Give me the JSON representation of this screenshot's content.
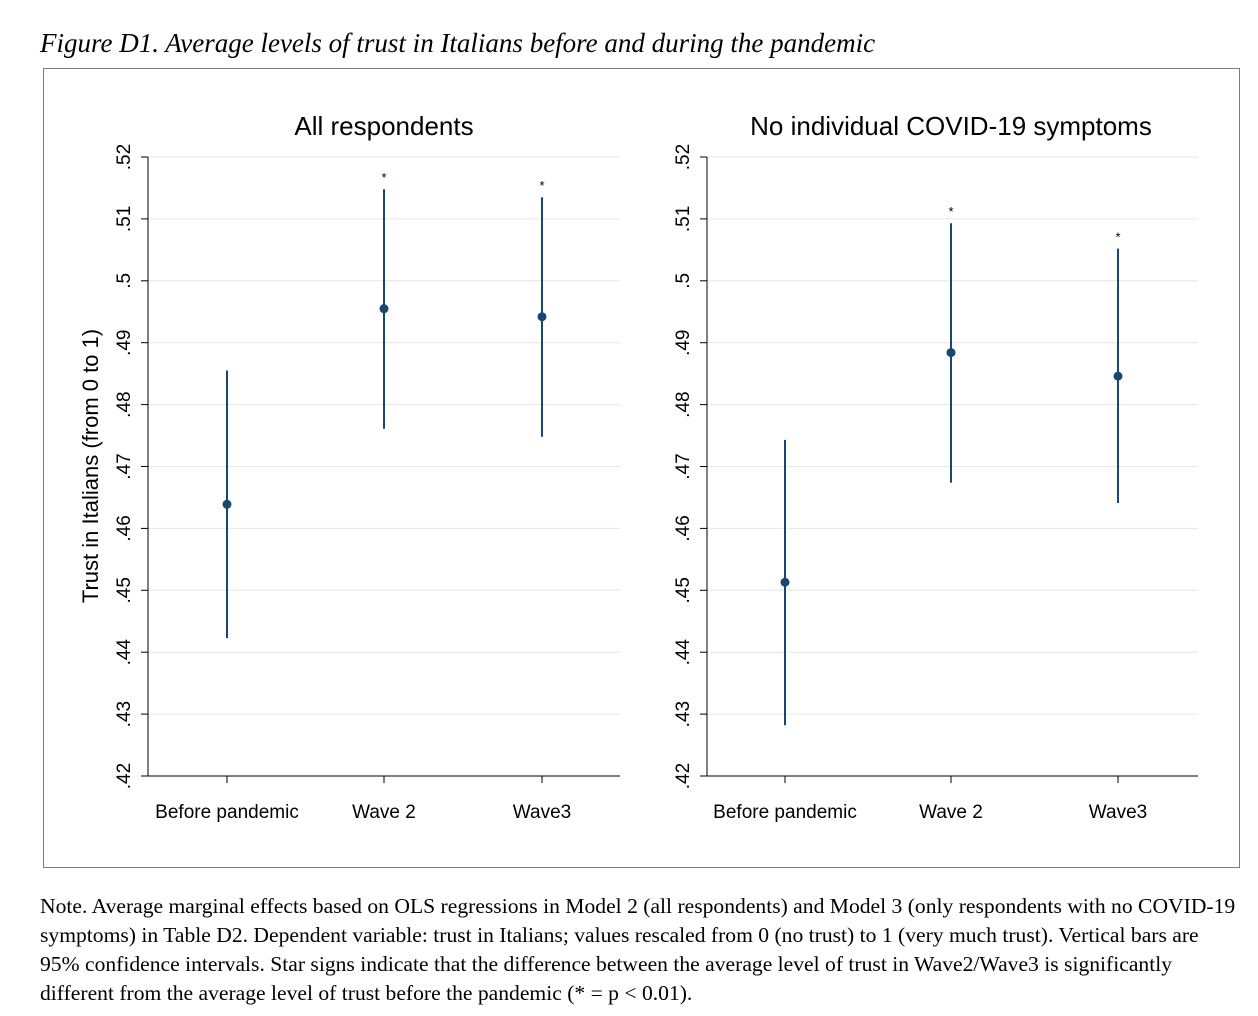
{
  "figure_title": "Figure D1. Average levels of trust in Italians before and during the pandemic",
  "note": "Note. Average marginal effects based on OLS regressions in Model 2 (all respondents) and Model 3 (only respondents with no COVID-19 symptoms) in Table D2. Dependent variable: trust in Italians; values rescaled from 0 (no trust) to 1 (very much trust). Vertical bars are 95% confidence intervals. Star signs indicate that the difference between the average level of trust in Wave2/Wave3 is significantly different from the average level of trust before the pandemic (* = p < 0.01).",
  "colors": {
    "marker": "#1a476f",
    "grid": "#e6e6e6",
    "axis": "#000000"
  },
  "chart_data": [
    {
      "type": "scatter",
      "title": "All respondents",
      "ylabel": "Trust in Italians (from 0 to 1)",
      "xlabel": "",
      "categories": [
        "Before pandemic",
        "Wave 2",
        "Wave3"
      ],
      "values": [
        0.4639,
        0.4955,
        0.4942
      ],
      "ci_low": [
        0.4423,
        0.4761,
        0.4748
      ],
      "ci_high": [
        0.4855,
        0.5148,
        0.5135
      ],
      "significance": [
        "",
        "*",
        "*"
      ],
      "yticks": [
        ".42",
        ".43",
        ".44",
        ".45",
        ".46",
        ".47",
        ".48",
        ".49",
        ".5",
        ".51",
        ".52"
      ],
      "ylim": [
        0.42,
        0.52
      ],
      "grid": true,
      "error_bars": "95% CI"
    },
    {
      "type": "scatter",
      "title": "No individual COVID-19 symptoms",
      "ylabel": "",
      "xlabel": "",
      "categories": [
        "Before pandemic",
        "Wave 2",
        "Wave3"
      ],
      "values": [
        0.4513,
        0.4884,
        0.4846
      ],
      "ci_low": [
        0.4282,
        0.4674,
        0.4641
      ],
      "ci_high": [
        0.4743,
        0.5093,
        0.5052
      ],
      "significance": [
        "",
        "*",
        "*"
      ],
      "yticks": [
        ".42",
        ".43",
        ".44",
        ".45",
        ".46",
        ".47",
        ".48",
        ".49",
        ".5",
        ".51",
        ".52"
      ],
      "ylim": [
        0.42,
        0.52
      ],
      "grid": true,
      "error_bars": "95% CI"
    }
  ]
}
